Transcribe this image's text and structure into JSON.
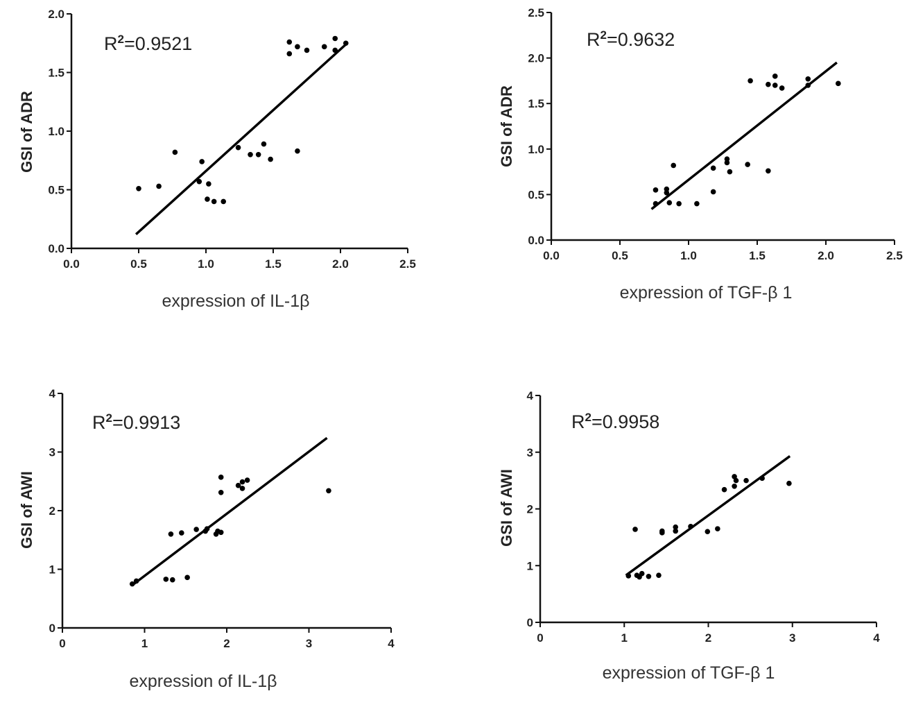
{
  "chart_data": [
    {
      "type": "scatter",
      "annotation": "R2=0.9521",
      "annotation_base": "R",
      "annotation_sup": "2",
      "annotation_value": "=0.9521",
      "xlabel": "expression of IL-1β",
      "ylabel": "GSI of ADR",
      "xlim": [
        0,
        2.5
      ],
      "ylim": [
        0,
        2.0
      ],
      "xticks": [
        "0.0",
        "0.5",
        "1.0",
        "1.5",
        "2.0",
        "2.5"
      ],
      "yticks": [
        "0.0",
        "0.5",
        "1.0",
        "1.5",
        "2.0"
      ],
      "x": [
        0.5,
        0.65,
        0.77,
        0.97,
        0.95,
        1.02,
        1.01,
        1.06,
        1.13,
        1.24,
        1.33,
        1.39,
        1.43,
        1.48,
        1.68,
        1.62,
        1.62,
        1.68,
        1.75,
        1.88,
        1.96,
        1.96,
        2.04
      ],
      "y": [
        0.51,
        0.53,
        0.82,
        0.74,
        0.57,
        0.55,
        0.42,
        0.4,
        0.4,
        0.86,
        0.8,
        0.8,
        0.89,
        0.76,
        0.83,
        1.76,
        1.66,
        1.72,
        1.69,
        1.72,
        1.79,
        1.69,
        1.75
      ],
      "fit_line": {
        "x": [
          0.48,
          2.05
        ],
        "y": [
          0.12,
          1.75
        ]
      },
      "grid": false
    },
    {
      "type": "scatter",
      "annotation": "R2=0.9632",
      "annotation_base": "R",
      "annotation_sup": "2",
      "annotation_value": "=0.9632",
      "xlabel": "expression of TGF-β 1",
      "ylabel": "GSI of ADR",
      "xlim": [
        0,
        2.5
      ],
      "ylim": [
        0,
        2.5
      ],
      "xticks": [
        "0.0",
        "0.5",
        "1.0",
        "1.5",
        "2.0",
        "2.5"
      ],
      "yticks": [
        "0.0",
        "0.5",
        "1.0",
        "1.5",
        "2.0",
        "2.5"
      ],
      "x": [
        0.76,
        0.76,
        0.84,
        0.84,
        0.86,
        0.89,
        0.93,
        1.06,
        1.18,
        1.18,
        1.28,
        1.28,
        1.3,
        1.43,
        1.45,
        1.58,
        1.58,
        1.63,
        1.63,
        1.68,
        1.87,
        1.87,
        2.09
      ],
      "y": [
        0.55,
        0.4,
        0.56,
        0.52,
        0.41,
        0.82,
        0.4,
        0.4,
        0.79,
        0.53,
        0.89,
        0.85,
        0.75,
        0.83,
        1.75,
        0.76,
        1.71,
        1.8,
        1.7,
        1.67,
        1.77,
        1.7,
        1.72
      ],
      "fit_line": {
        "x": [
          0.73,
          2.08
        ],
        "y": [
          0.34,
          1.95
        ]
      },
      "grid": false
    },
    {
      "type": "scatter",
      "annotation": "R2=0.9913",
      "annotation_base": "R",
      "annotation_sup": "2",
      "annotation_value": "=0.9913",
      "xlabel": "expression of IL-1β",
      "ylabel": "GSI of AWI",
      "xlim": [
        0,
        4
      ],
      "ylim": [
        0,
        4
      ],
      "xticks": [
        "0",
        "1",
        "2",
        "3",
        "4"
      ],
      "yticks": [
        "0",
        "1",
        "2",
        "3",
        "4"
      ],
      "x": [
        0.85,
        0.9,
        1.26,
        1.34,
        1.52,
        1.32,
        1.45,
        1.63,
        1.74,
        1.76,
        1.87,
        1.89,
        1.93,
        1.93,
        1.93,
        2.14,
        2.19,
        2.19,
        2.25,
        3.24
      ],
      "y": [
        0.75,
        0.8,
        0.83,
        0.82,
        0.86,
        1.6,
        1.62,
        1.68,
        1.65,
        1.69,
        1.6,
        1.65,
        1.63,
        2.57,
        2.31,
        2.43,
        2.38,
        2.49,
        2.52,
        2.34
      ],
      "fit_line": {
        "x": [
          0.87,
          3.22
        ],
        "y": [
          0.75,
          3.24
        ]
      },
      "grid": false
    },
    {
      "type": "scatter",
      "annotation": "R2=0.9958",
      "annotation_base": "R",
      "annotation_sup": "2",
      "annotation_value": "=0.9958",
      "xlabel": "expression of  TGF-β 1",
      "ylabel": "GSI of AWI",
      "xlim": [
        0,
        4
      ],
      "ylim": [
        0,
        4
      ],
      "xticks": [
        "0",
        "1",
        "2",
        "3",
        "4"
      ],
      "yticks": [
        "0",
        "1",
        "2",
        "3",
        "4"
      ],
      "x": [
        1.05,
        1.13,
        1.15,
        1.18,
        1.21,
        1.29,
        1.41,
        1.45,
        1.45,
        1.61,
        1.61,
        1.79,
        1.99,
        2.11,
        2.19,
        2.31,
        2.31,
        2.33,
        2.45,
        2.64,
        2.96
      ],
      "y": [
        0.82,
        1.64,
        0.83,
        0.8,
        0.86,
        0.81,
        0.83,
        1.61,
        1.58,
        1.68,
        1.61,
        1.69,
        1.6,
        1.65,
        2.34,
        2.57,
        2.4,
        2.5,
        2.5,
        2.54,
        2.45
      ],
      "fit_line": {
        "x": [
          1.02,
          2.97
        ],
        "y": [
          0.83,
          2.93
        ]
      },
      "grid": false
    }
  ]
}
